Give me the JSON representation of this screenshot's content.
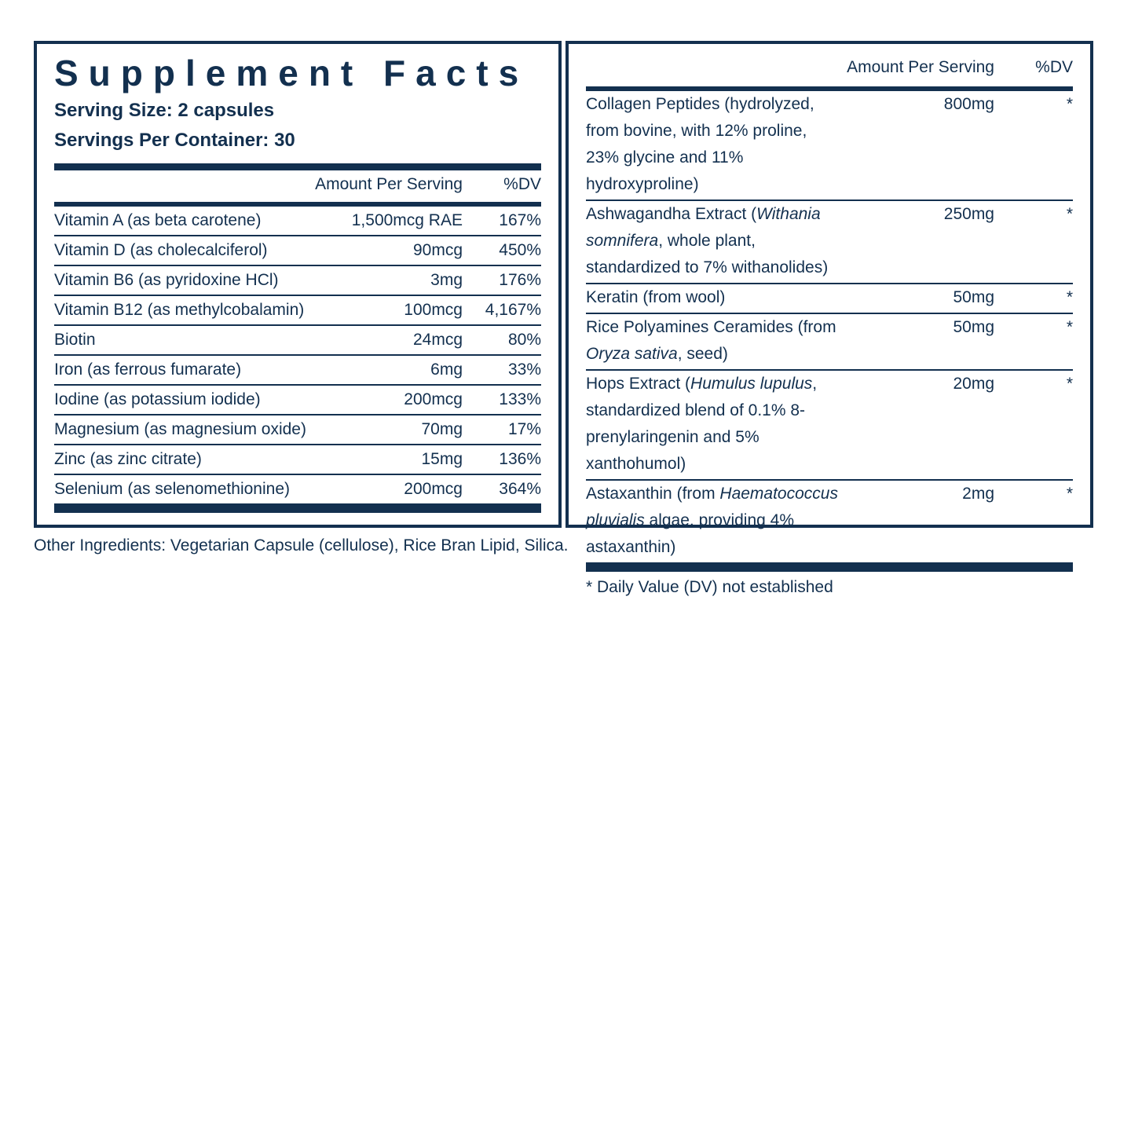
{
  "left": {
    "title": "Supplement Facts",
    "serving_size": "Serving Size: 2 capsules",
    "servings_per_container": "Servings Per Container: 30",
    "header": [
      "Amount Per Serving",
      "%DV"
    ],
    "rows": [
      [
        "Vitamin A (as beta carotene)",
        "1,500mcg RAE",
        "167%"
      ],
      [
        "Vitamin D (as cholecalciferol)",
        "90mcg",
        "450%"
      ],
      [
        "Vitamin B6 (as pyridoxine HCl)",
        "3mg",
        "176%"
      ],
      [
        "Vitamin B12 (as methylcobalamin)",
        "100mcg",
        "4,167%"
      ],
      [
        "Biotin",
        "24mcg",
        "80%"
      ],
      [
        "Iron (as ferrous fumarate)",
        "6mg",
        "33%"
      ],
      [
        "Iodine (as potassium iodide)",
        "200mcg",
        "133%"
      ],
      [
        "Magnesium (as magnesium oxide)",
        "70mg",
        "17%"
      ],
      [
        "Zinc (as zinc citrate)",
        "15mg",
        "136%"
      ],
      [
        "Selenium (as selenomethionine)",
        "200mcg",
        "364%"
      ]
    ]
  },
  "right": {
    "header": [
      "Amount Per Serving",
      "%DV"
    ],
    "rows": [
      [
        [
          "Collagen Peptides (hydrolyzed, from bovine, with 12% proline, 23% glycine and 11% hydroxyproline)"
        ],
        "800mg",
        "*"
      ],
      [
        [
          "Ashwagandha Extract (",
          "Withania somnifera",
          ", whole plant, standardized to 7% withanolides)"
        ],
        "250mg",
        "*"
      ],
      [
        [
          "Keratin (from wool)"
        ],
        "50mg",
        "*"
      ],
      [
        [
          "Rice Polyamines Ceramides (from ",
          "Oryza sativa",
          ", seed)"
        ],
        "50mg",
        "*"
      ],
      [
        [
          "Hops Extract (",
          "Humulus lupulus",
          ", standardized blend of 0.1% 8-prenylaringenin and 5% xanthohumol)"
        ],
        "20mg",
        "*"
      ],
      [
        [
          "Astaxanthin (from ",
          "Haematococcus pluvialis",
          " algae, providing 4% astaxanthin)"
        ],
        "2mg",
        "*"
      ]
    ],
    "footnote": "* Daily Value (DV) not established"
  },
  "other_ingredients": "Other Ingredients: Vegetarian Capsule (cellulose), Rice Bran Lipid, Silica."
}
